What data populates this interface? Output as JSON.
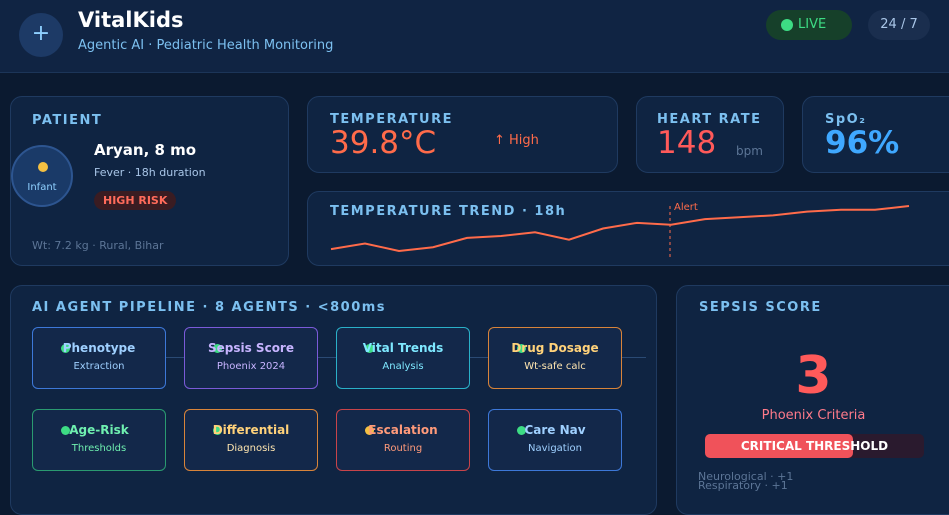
{
  "header": {
    "icon": "+",
    "title": "VitalKids",
    "subtitle": "Agentic AI · Pediatric Health Monitoring",
    "live": "LIVE",
    "availability": "24 / 7"
  },
  "patient": {
    "heading": "PATIENT",
    "avatar_label": "Infant",
    "name": "Aryan, 8 mo",
    "detail": "Fever · 18h duration",
    "risk": "HIGH RISK",
    "footer": "Wt: 7.2 kg · Rural, Bihar"
  },
  "vitals": {
    "temperature": {
      "label": "TEMPERATURE",
      "value": "39.8°C",
      "flag": "↑ High"
    },
    "heart_rate": {
      "label": "HEART RATE",
      "value": "148",
      "unit": "bpm"
    },
    "spo2": {
      "label": "SpO₂",
      "value": "96%"
    }
  },
  "trend": {
    "title": "TEMPERATURE TREND · 18h",
    "alert": "Alert",
    "values": [
      37.5,
      37.8,
      37.4,
      37.6,
      38.1,
      38.2,
      38.4,
      38.0,
      38.6,
      38.9,
      38.8,
      39.1,
      39.2,
      39.3,
      39.5,
      39.6,
      39.6,
      39.8
    ]
  },
  "pipeline": {
    "title": "AI AGENT PIPELINE · 8 AGENTS · <800ms",
    "agents": [
      {
        "name": "Phenotype",
        "detail": "Extraction"
      },
      {
        "name": "Sepsis Score",
        "detail": "Phoenix 2024"
      },
      {
        "name": "Vital Trends",
        "detail": "Analysis"
      },
      {
        "name": "Drug Dosage",
        "detail": "Wt-safe calc"
      },
      {
        "name": "Age-Risk",
        "detail": "Thresholds"
      },
      {
        "name": "Differential",
        "detail": "Diagnosis"
      },
      {
        "name": "Escalation",
        "detail": "Routing"
      },
      {
        "name": "Care Nav",
        "detail": "Navigation"
      }
    ]
  },
  "sepsis": {
    "title": "SEPSIS SCORE",
    "score": "3",
    "criteria": "Phoenix Criteria",
    "status": "CRITICAL THRESHOLD",
    "components": [
      "Neurological · +1",
      "Respiratory · +1"
    ]
  }
}
